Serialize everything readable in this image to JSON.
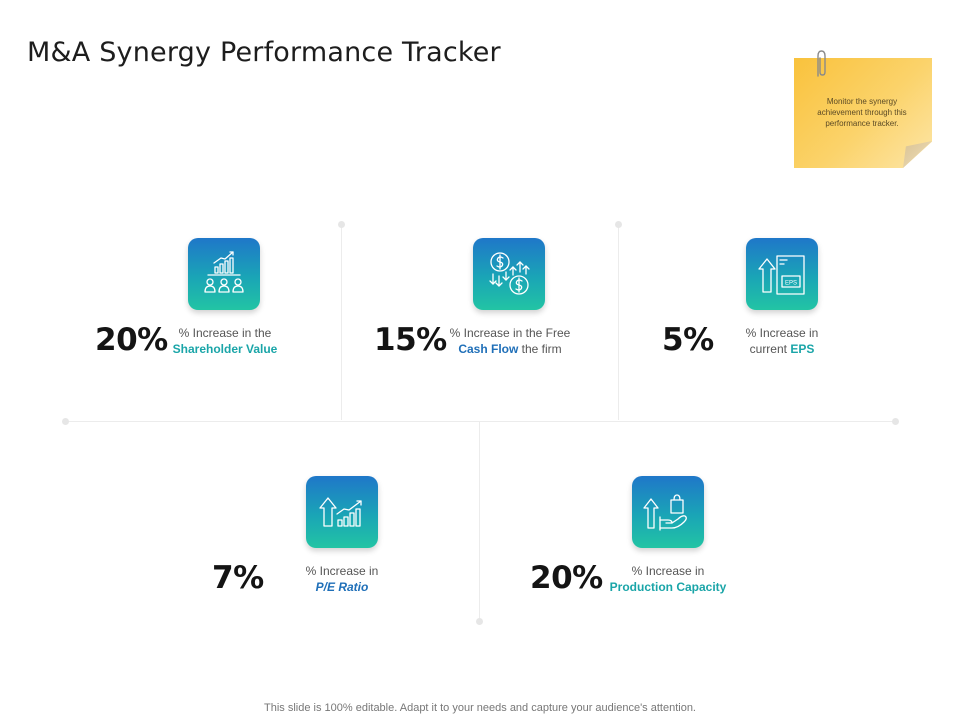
{
  "title": "M&A Synergy Performance Tracker",
  "note": {
    "text": "Monitor the synergy achievement through this performance tracker."
  },
  "metrics": [
    {
      "value": "20%",
      "line1": "% Increase  in the",
      "highlight": "Shareholder Value",
      "icon": "shareholders-growth-icon"
    },
    {
      "value": "15%",
      "line1": "% Increase  in the Free",
      "highlight": "Cash Flow",
      "suffix": " the firm",
      "icon": "cash-flow-icon"
    },
    {
      "value": "5%",
      "line1": "% Increase  in",
      "prefix": "current ",
      "highlight": "EPS",
      "icon": "eps-document-icon",
      "icon_label": "EPS"
    },
    {
      "value": "7%",
      "line1": "% Increase  in",
      "highlight": "P/E Ratio",
      "icon": "pe-ratio-growth-icon"
    },
    {
      "value": "20%",
      "line1": "% Increase  in",
      "highlight": "Production Capacity",
      "icon": "production-hand-icon"
    }
  ],
  "footer": "This slide is 100% editable. Adapt it to your needs and capture your audience's attention.",
  "colors": {
    "tile_top": "#1f77c9",
    "tile_bottom": "#22c4a4",
    "note": "#f9c23c",
    "highlight_teal": "#1aa5a8",
    "highlight_blue": "#1f6fb8"
  }
}
